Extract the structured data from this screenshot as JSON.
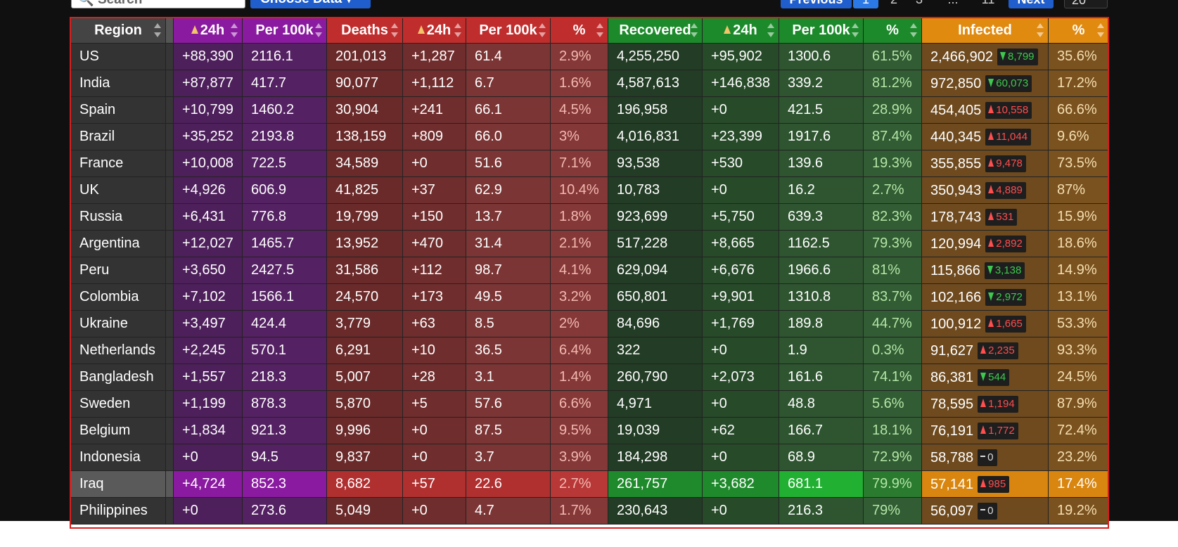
{
  "controls": {
    "search_placeholder": "Search",
    "choose_data_label": "Choose Data",
    "prev_label": "Previous",
    "current_page": "1",
    "page_numbers": [
      "2",
      "3",
      "...",
      "11"
    ],
    "next_label": "Next",
    "page_size": "20"
  },
  "table": {
    "headers": [
      "Region",
      "24h",
      "Per 100k",
      "Deaths",
      "24h",
      "Per 100k",
      "%",
      "Recovered",
      "24h",
      "Per 100k",
      "%",
      "Infected",
      "%"
    ],
    "rows": [
      {
        "region": "US",
        "c24h": "+88,390",
        "cper": "2116.1",
        "deaths": "201,013",
        "d24h": "+1,287",
        "dper": "61.4",
        "dpct": "2.9%",
        "rec": "4,255,250",
        "r24h": "+95,902",
        "rper": "1300.6",
        "rpct": "61.5%",
        "inf": "2,466,902",
        "ichg": "8,799",
        "idir": "down",
        "ipct": "35.6%"
      },
      {
        "region": "India",
        "c24h": "+87,877",
        "cper": "417.7",
        "deaths": "90,077",
        "d24h": "+1,112",
        "dper": "6.7",
        "dpct": "1.6%",
        "rec": "4,587,613",
        "r24h": "+146,838",
        "rper": "339.2",
        "rpct": "81.2%",
        "inf": "972,850",
        "ichg": "60,073",
        "idir": "down",
        "ipct": "17.2%"
      },
      {
        "region": "Spain",
        "c24h": "+10,799",
        "cper": "1460.2",
        "deaths": "30,904",
        "d24h": "+241",
        "dper": "66.1",
        "dpct": "4.5%",
        "rec": "196,958",
        "r24h": "+0",
        "rper": "421.5",
        "rpct": "28.9%",
        "inf": "454,405",
        "ichg": "10,558",
        "idir": "up",
        "ipct": "66.6%"
      },
      {
        "region": "Brazil",
        "c24h": "+35,252",
        "cper": "2193.8",
        "deaths": "138,159",
        "d24h": "+809",
        "dper": "66.0",
        "dpct": "3%",
        "rec": "4,016,831",
        "r24h": "+23,399",
        "rper": "1917.6",
        "rpct": "87.4%",
        "inf": "440,345",
        "ichg": "11,044",
        "idir": "up",
        "ipct": "9.6%"
      },
      {
        "region": "France",
        "c24h": "+10,008",
        "cper": "722.5",
        "deaths": "34,589",
        "d24h": "+0",
        "dper": "51.6",
        "dpct": "7.1%",
        "rec": "93,538",
        "r24h": "+530",
        "rper": "139.6",
        "rpct": "19.3%",
        "inf": "355,855",
        "ichg": "9,478",
        "idir": "up",
        "ipct": "73.5%"
      },
      {
        "region": "UK",
        "c24h": "+4,926",
        "cper": "606.9",
        "deaths": "41,825",
        "d24h": "+37",
        "dper": "62.9",
        "dpct": "10.4%",
        "rec": "10,783",
        "r24h": "+0",
        "rper": "16.2",
        "rpct": "2.7%",
        "inf": "350,943",
        "ichg": "4,889",
        "idir": "up",
        "ipct": "87%"
      },
      {
        "region": "Russia",
        "c24h": "+6,431",
        "cper": "776.8",
        "deaths": "19,799",
        "d24h": "+150",
        "dper": "13.7",
        "dpct": "1.8%",
        "rec": "923,699",
        "r24h": "+5,750",
        "rper": "639.3",
        "rpct": "82.3%",
        "inf": "178,743",
        "ichg": "531",
        "idir": "up",
        "ipct": "15.9%"
      },
      {
        "region": "Argentina",
        "c24h": "+12,027",
        "cper": "1465.7",
        "deaths": "13,952",
        "d24h": "+470",
        "dper": "31.4",
        "dpct": "2.1%",
        "rec": "517,228",
        "r24h": "+8,665",
        "rper": "1162.5",
        "rpct": "79.3%",
        "inf": "120,994",
        "ichg": "2,892",
        "idir": "up",
        "ipct": "18.6%"
      },
      {
        "region": "Peru",
        "c24h": "+3,650",
        "cper": "2427.5",
        "deaths": "31,586",
        "d24h": "+112",
        "dper": "98.7",
        "dpct": "4.1%",
        "rec": "629,094",
        "r24h": "+6,676",
        "rper": "1966.6",
        "rpct": "81%",
        "inf": "115,866",
        "ichg": "3,138",
        "idir": "down",
        "ipct": "14.9%"
      },
      {
        "region": "Colombia",
        "c24h": "+7,102",
        "cper": "1566.1",
        "deaths": "24,570",
        "d24h": "+173",
        "dper": "49.5",
        "dpct": "3.2%",
        "rec": "650,801",
        "r24h": "+9,901",
        "rper": "1310.8",
        "rpct": "83.7%",
        "inf": "102,166",
        "ichg": "2,972",
        "idir": "down",
        "ipct": "13.1%"
      },
      {
        "region": "Ukraine",
        "c24h": "+3,497",
        "cper": "424.4",
        "deaths": "3,779",
        "d24h": "+63",
        "dper": "8.5",
        "dpct": "2%",
        "rec": "84,696",
        "r24h": "+1,769",
        "rper": "189.8",
        "rpct": "44.7%",
        "inf": "100,912",
        "ichg": "1,665",
        "idir": "up",
        "ipct": "53.3%"
      },
      {
        "region": "Netherlands",
        "c24h": "+2,245",
        "cper": "570.1",
        "deaths": "6,291",
        "d24h": "+10",
        "dper": "36.5",
        "dpct": "6.4%",
        "rec": "322",
        "r24h": "+0",
        "rper": "1.9",
        "rpct": "0.3%",
        "inf": "91,627",
        "ichg": "2,235",
        "idir": "up",
        "ipct": "93.3%"
      },
      {
        "region": "Bangladesh",
        "c24h": "+1,557",
        "cper": "218.3",
        "deaths": "5,007",
        "d24h": "+28",
        "dper": "3.1",
        "dpct": "1.4%",
        "rec": "260,790",
        "r24h": "+2,073",
        "rper": "161.6",
        "rpct": "74.1%",
        "inf": "86,381",
        "ichg": "544",
        "idir": "down",
        "ipct": "24.5%"
      },
      {
        "region": "Sweden",
        "c24h": "+1,199",
        "cper": "878.3",
        "deaths": "5,870",
        "d24h": "+5",
        "dper": "57.6",
        "dpct": "6.6%",
        "rec": "4,971",
        "r24h": "+0",
        "rper": "48.8",
        "rpct": "5.6%",
        "inf": "78,595",
        "ichg": "1,194",
        "idir": "up",
        "ipct": "87.9%"
      },
      {
        "region": "Belgium",
        "c24h": "+1,834",
        "cper": "921.3",
        "deaths": "9,996",
        "d24h": "+0",
        "dper": "87.5",
        "dpct": "9.5%",
        "rec": "19,039",
        "r24h": "+62",
        "rper": "166.7",
        "rpct": "18.1%",
        "inf": "76,191",
        "ichg": "1,772",
        "idir": "up",
        "ipct": "72.4%"
      },
      {
        "region": "Indonesia",
        "c24h": "+0",
        "cper": "94.5",
        "deaths": "9,837",
        "d24h": "+0",
        "dper": "3.7",
        "dpct": "3.9%",
        "rec": "184,298",
        "r24h": "+0",
        "rper": "68.9",
        "rpct": "72.9%",
        "inf": "58,788",
        "ichg": "0",
        "idir": "flat",
        "ipct": "23.2%"
      },
      {
        "region": "Iraq",
        "c24h": "+4,724",
        "cper": "852.3",
        "deaths": "8,682",
        "d24h": "+57",
        "dper": "22.6",
        "dpct": "2.7%",
        "rec": "261,757",
        "r24h": "+3,682",
        "rper": "681.1",
        "rpct": "79.9%",
        "inf": "57,141",
        "ichg": "985",
        "idir": "up",
        "ipct": "17.4%",
        "highlighted": true
      },
      {
        "region": "Philippines",
        "c24h": "+0",
        "cper": "273.6",
        "deaths": "5,049",
        "d24h": "+0",
        "dper": "4.7",
        "dpct": "1.7%",
        "rec": "230,643",
        "r24h": "+0",
        "rper": "216.3",
        "rpct": "79%",
        "inf": "56,097",
        "ichg": "0",
        "idir": "flat",
        "ipct": "19.2%"
      }
    ]
  }
}
